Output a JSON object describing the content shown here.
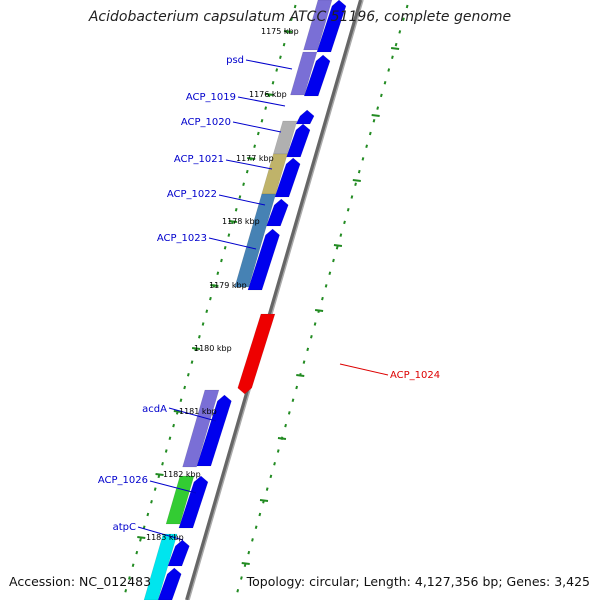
{
  "title": "Acidobacterium capsulatum ATCC 51196, complete genome",
  "footer": {
    "accession": "Accession: NC_012483",
    "topology": "Topology: circular; Length: 4,127,356 bp; Genes: 3,425"
  },
  "map": {
    "kbp_labels": [
      "1175 kbp",
      "1176 kbp",
      "1177 kbp",
      "1178 kbp",
      "1179 kbp",
      "1180 kbp",
      "1181 kbp",
      "1182 kbp",
      "1183 kbp"
    ],
    "gene_labels": [
      "psd",
      "ACP_1019",
      "ACP_1020",
      "ACP_1021",
      "ACP_1022",
      "ACP_1023",
      "ACP_1024",
      "acdA",
      "ACP_1026",
      "atpC"
    ],
    "colors": {
      "forward_cds": "#0000ee",
      "reverse_cds": "#ee0000",
      "label_left": "#0000cc",
      "label_right": "#dd0000",
      "tick": "#228b22",
      "backbone": "#808080",
      "cog_purple": "#7a6fd6",
      "cog_gray": "#b0b0b0",
      "cog_khaki": "#bfb36a",
      "cog_steel": "#4682b4",
      "cog_green": "#33cc33",
      "cog_cyan": "#00e5ee"
    }
  }
}
